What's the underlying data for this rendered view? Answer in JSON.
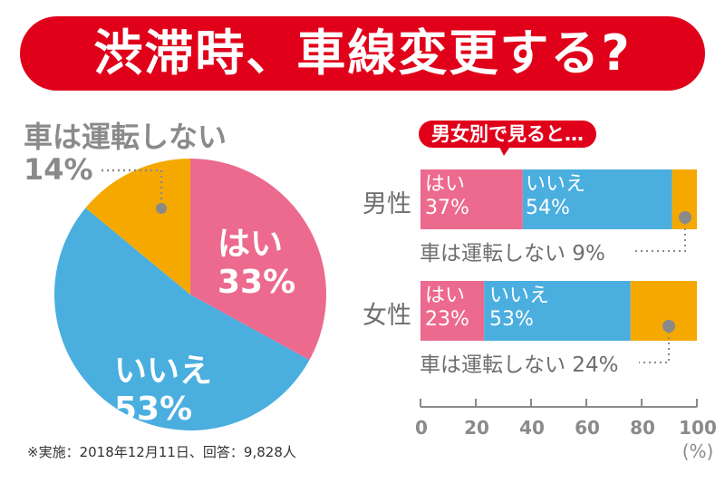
{
  "title": "渋滞時、車線変更する?",
  "colors": {
    "yes": "#ec6a8e",
    "no": "#4aaedf",
    "none": "#f5a900",
    "red": "#e0001a"
  },
  "chart_data": [
    {
      "type": "pie",
      "title": "渋滞時、車線変更する?",
      "slices": [
        {
          "label": "はい",
          "value": 33,
          "pct_label": "33%"
        },
        {
          "label": "いいえ",
          "value": 53,
          "pct_label": "53%"
        },
        {
          "label": "車は運転しない",
          "value": 14,
          "pct_label": "14%"
        }
      ]
    },
    {
      "type": "bar",
      "stacked": true,
      "orientation": "horizontal",
      "title": "男女別で見ると…",
      "categories": [
        "男性",
        "女性"
      ],
      "series": [
        {
          "name": "はい",
          "values": [
            37,
            23
          ],
          "labels": [
            "37%",
            "23%"
          ]
        },
        {
          "name": "いいえ",
          "values": [
            54,
            53
          ],
          "labels": [
            "54%",
            "53%"
          ]
        },
        {
          "name": "車は運転しない",
          "values": [
            9,
            24
          ],
          "labels": [
            "車は運転しない 9%",
            "車は運転しない 24%"
          ]
        }
      ],
      "xlim": [
        0,
        100
      ],
      "xticks": [
        "0",
        "20",
        "40",
        "60",
        "80",
        "100"
      ],
      "xlabel": "(%)"
    }
  ],
  "footnote": "※実施：2018年12月11日、回答：9,828人"
}
